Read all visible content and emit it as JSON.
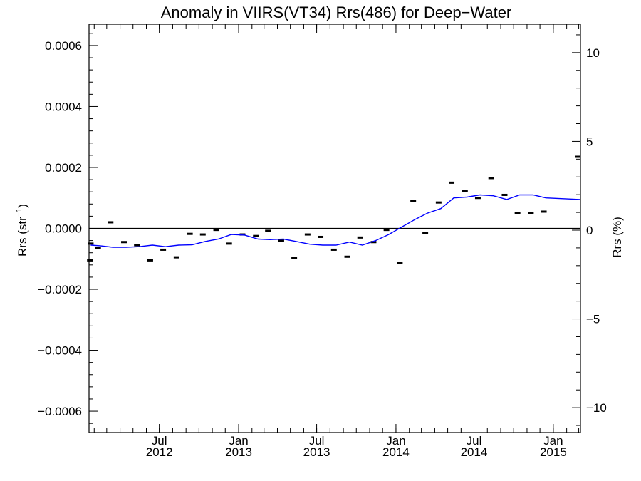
{
  "chart_data": {
    "type": "line",
    "title": "Anomaly in VIIRS(VT34) Rrs(486) for Deep−Water",
    "ylabel": "Rrs (str",
    "ylabel_sup": "−1",
    "ylabel_close": ")",
    "y2label": "Rrs (%)",
    "xlim": [
      "2012-01-20",
      "2015-03-05"
    ],
    "ylim": [
      -0.00067,
      0.00067
    ],
    "y2lim": [
      -11.4,
      11.6
    ],
    "grid": false,
    "zero_line": true,
    "x_ticks": [
      {
        "date": "2012-07-01",
        "month": "Jul",
        "year": "2012"
      },
      {
        "date": "2013-01-01",
        "month": "Jan",
        "year": "2013"
      },
      {
        "date": "2013-07-01",
        "month": "Jul",
        "year": "2013"
      },
      {
        "date": "2014-01-01",
        "month": "Jan",
        "year": "2014"
      },
      {
        "date": "2014-07-01",
        "month": "Jul",
        "year": "2014"
      },
      {
        "date": "2015-01-01",
        "month": "Jan",
        "year": "2015"
      }
    ],
    "y_ticks": [
      {
        "value": 0.0006,
        "label": "0.0006"
      },
      {
        "value": 0.0004,
        "label": "0.0004"
      },
      {
        "value": 0.0002,
        "label": "0.0002"
      },
      {
        "value": 0.0,
        "label": "0.0000"
      },
      {
        "value": -0.0002,
        "label": "−0.0002"
      },
      {
        "value": -0.0004,
        "label": "−0.0004"
      },
      {
        "value": -0.0006,
        "label": "−0.0006"
      }
    ],
    "y2_ticks": [
      {
        "value": 10,
        "label": "10"
      },
      {
        "value": 5,
        "label": "5"
      },
      {
        "value": 0,
        "label": "0"
      },
      {
        "value": -5,
        "label": "−5"
      },
      {
        "value": -10,
        "label": "−10"
      }
    ],
    "series": [
      {
        "style": "markers",
        "color": "#000000",
        "points": [
          {
            "x": "2012-01-22",
            "y": -0.000105
          },
          {
            "x": "2012-01-24",
            "y": -5e-05
          },
          {
            "x": "2012-02-10",
            "y": -6.5e-05
          },
          {
            "x": "2012-03-10",
            "y": 2e-05
          },
          {
            "x": "2012-04-10",
            "y": -4.5e-05
          },
          {
            "x": "2012-05-10",
            "y": -5.5e-05
          },
          {
            "x": "2012-06-10",
            "y": -0.000105
          },
          {
            "x": "2012-07-10",
            "y": -7e-05
          },
          {
            "x": "2012-08-10",
            "y": -9.5e-05
          },
          {
            "x": "2012-09-10",
            "y": -1.8e-05
          },
          {
            "x": "2012-10-10",
            "y": -2e-05
          },
          {
            "x": "2012-11-10",
            "y": -5e-06
          },
          {
            "x": "2012-12-10",
            "y": -5e-05
          },
          {
            "x": "2013-01-10",
            "y": -2e-05
          },
          {
            "x": "2013-02-10",
            "y": -2.5e-05
          },
          {
            "x": "2013-03-10",
            "y": -8e-06
          },
          {
            "x": "2013-04-10",
            "y": -4e-05
          },
          {
            "x": "2013-05-10",
            "y": -9.8e-05
          },
          {
            "x": "2013-06-10",
            "y": -2e-05
          },
          {
            "x": "2013-07-10",
            "y": -2.8e-05
          },
          {
            "x": "2013-08-10",
            "y": -7e-05
          },
          {
            "x": "2013-09-10",
            "y": -9.3e-05
          },
          {
            "x": "2013-10-10",
            "y": -3e-05
          },
          {
            "x": "2013-11-10",
            "y": -4.5e-05
          },
          {
            "x": "2013-12-10",
            "y": -5e-06
          },
          {
            "x": "2014-01-10",
            "y": -0.000113
          },
          {
            "x": "2014-02-10",
            "y": 9e-05
          },
          {
            "x": "2014-03-10",
            "y": -1.5e-05
          },
          {
            "x": "2014-04-10",
            "y": 8.5e-05
          },
          {
            "x": "2014-05-10",
            "y": 0.00015
          },
          {
            "x": "2014-06-10",
            "y": 0.000123
          },
          {
            "x": "2014-07-10",
            "y": 0.0001
          },
          {
            "x": "2014-08-10",
            "y": 0.000165
          },
          {
            "x": "2014-09-10",
            "y": 0.00011
          },
          {
            "x": "2014-10-10",
            "y": 5e-05
          },
          {
            "x": "2014-11-10",
            "y": 5e-05
          },
          {
            "x": "2014-12-10",
            "y": 5.5e-05
          },
          {
            "x": "2015-03-05",
            "y": 0.000235
          }
        ]
      },
      {
        "style": "line",
        "color": "#0000ff",
        "points": [
          {
            "x": "2012-01-24",
            "y": -5.5e-05
          },
          {
            "x": "2012-02-15",
            "y": -5.7e-05
          },
          {
            "x": "2012-03-15",
            "y": -6.2e-05
          },
          {
            "x": "2012-04-15",
            "y": -6.2e-05
          },
          {
            "x": "2012-05-15",
            "y": -6e-05
          },
          {
            "x": "2012-06-15",
            "y": -5.5e-05
          },
          {
            "x": "2012-07-15",
            "y": -6e-05
          },
          {
            "x": "2012-08-15",
            "y": -5.5e-05
          },
          {
            "x": "2012-09-15",
            "y": -5.4e-05
          },
          {
            "x": "2012-10-15",
            "y": -4.3e-05
          },
          {
            "x": "2012-11-15",
            "y": -3.5e-05
          },
          {
            "x": "2012-12-15",
            "y": -2e-05
          },
          {
            "x": "2013-01-15",
            "y": -2.2e-05
          },
          {
            "x": "2013-02-15",
            "y": -3.5e-05
          },
          {
            "x": "2013-03-15",
            "y": -3.7e-05
          },
          {
            "x": "2013-04-15",
            "y": -3.5e-05
          },
          {
            "x": "2013-05-15",
            "y": -4.3e-05
          },
          {
            "x": "2013-06-15",
            "y": -5.2e-05
          },
          {
            "x": "2013-07-15",
            "y": -5.5e-05
          },
          {
            "x": "2013-08-15",
            "y": -5.5e-05
          },
          {
            "x": "2013-09-15",
            "y": -4.5e-05
          },
          {
            "x": "2013-10-15",
            "y": -5.5e-05
          },
          {
            "x": "2013-11-15",
            "y": -4e-05
          },
          {
            "x": "2013-12-15",
            "y": -2e-05
          },
          {
            "x": "2014-01-15",
            "y": 5e-06
          },
          {
            "x": "2014-02-15",
            "y": 3e-05
          },
          {
            "x": "2014-03-15",
            "y": 5e-05
          },
          {
            "x": "2014-04-15",
            "y": 6.5e-05
          },
          {
            "x": "2014-05-15",
            "y": 0.0001
          },
          {
            "x": "2014-06-15",
            "y": 0.000103
          },
          {
            "x": "2014-07-15",
            "y": 0.00011
          },
          {
            "x": "2014-08-15",
            "y": 0.000107
          },
          {
            "x": "2014-09-15",
            "y": 9.5e-05
          },
          {
            "x": "2014-10-15",
            "y": 0.00011
          },
          {
            "x": "2014-11-15",
            "y": 0.00011
          },
          {
            "x": "2014-12-15",
            "y": 0.0001
          },
          {
            "x": "2015-03-05",
            "y": 9.5e-05
          }
        ]
      }
    ]
  }
}
